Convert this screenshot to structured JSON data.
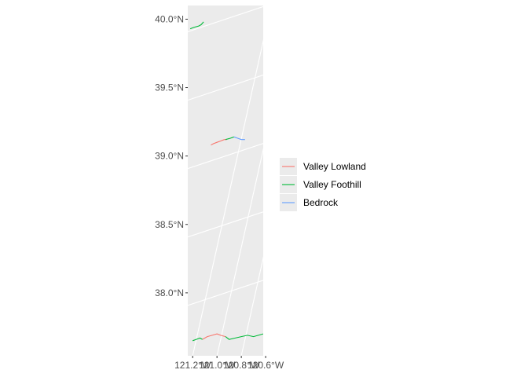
{
  "chart_data": {
    "type": "line",
    "title": "",
    "xlabel": "",
    "ylabel": "",
    "x_range": [
      -121.24,
      -120.62
    ],
    "y_range": [
      37.54,
      40.1
    ],
    "grid": true,
    "legend_position": "right",
    "y_ticks": [
      {
        "value": 40.0,
        "label": "40.0°N"
      },
      {
        "value": 39.5,
        "label": "39.5°N"
      },
      {
        "value": 39.0,
        "label": "39.0°N"
      },
      {
        "value": 38.5,
        "label": "38.5°N"
      },
      {
        "value": 38.0,
        "label": "38.0°N"
      }
    ],
    "x_ticks": [
      {
        "value": -121.2,
        "label": "121.2°W"
      },
      {
        "value": -121.0,
        "label": "121.0°W"
      },
      {
        "value": -120.8,
        "label": "120.8°W"
      },
      {
        "value": -120.6,
        "label": "120.6°W"
      }
    ],
    "series": [
      {
        "name": "Valley Lowland",
        "color": "#F8766D",
        "segments": [
          [
            [
              -121.05,
              39.08
            ],
            [
              -121.03,
              39.09
            ],
            [
              -121.0,
              39.1
            ],
            [
              -120.97,
              39.11
            ],
            [
              -120.94,
              39.12
            ],
            [
              -120.92,
              39.12
            ]
          ],
          [
            [
              -121.12,
              37.66
            ],
            [
              -121.08,
              37.68
            ],
            [
              -121.04,
              37.69
            ],
            [
              -121.0,
              37.7
            ],
            [
              -120.97,
              37.69
            ],
            [
              -120.93,
              37.68
            ]
          ]
        ]
      },
      {
        "name": "Valley Foothill",
        "color": "#00BA38",
        "segments": [
          [
            [
              -121.22,
              39.93
            ],
            [
              -121.19,
              39.94
            ],
            [
              -121.15,
              39.95
            ],
            [
              -121.13,
              39.96
            ],
            [
              -121.11,
              39.98
            ]
          ],
          [
            [
              -120.93,
              39.12
            ],
            [
              -120.89,
              39.13
            ],
            [
              -120.86,
              39.14
            ]
          ],
          [
            [
              -121.2,
              37.65
            ],
            [
              -121.17,
              37.66
            ],
            [
              -121.14,
              37.67
            ],
            [
              -121.12,
              37.66
            ]
          ],
          [
            [
              -120.93,
              37.68
            ],
            [
              -120.9,
              37.66
            ],
            [
              -120.85,
              37.67
            ],
            [
              -120.8,
              37.68
            ],
            [
              -120.75,
              37.69
            ],
            [
              -120.7,
              37.68
            ],
            [
              -120.66,
              37.69
            ],
            [
              -120.62,
              37.7
            ]
          ]
        ]
      },
      {
        "name": "Bedrock",
        "color": "#619CFF",
        "segments": [
          [
            [
              -120.86,
              39.14
            ],
            [
              -120.83,
              39.13
            ],
            [
              -120.8,
              39.12
            ],
            [
              -120.77,
              39.12
            ]
          ]
        ]
      }
    ]
  }
}
